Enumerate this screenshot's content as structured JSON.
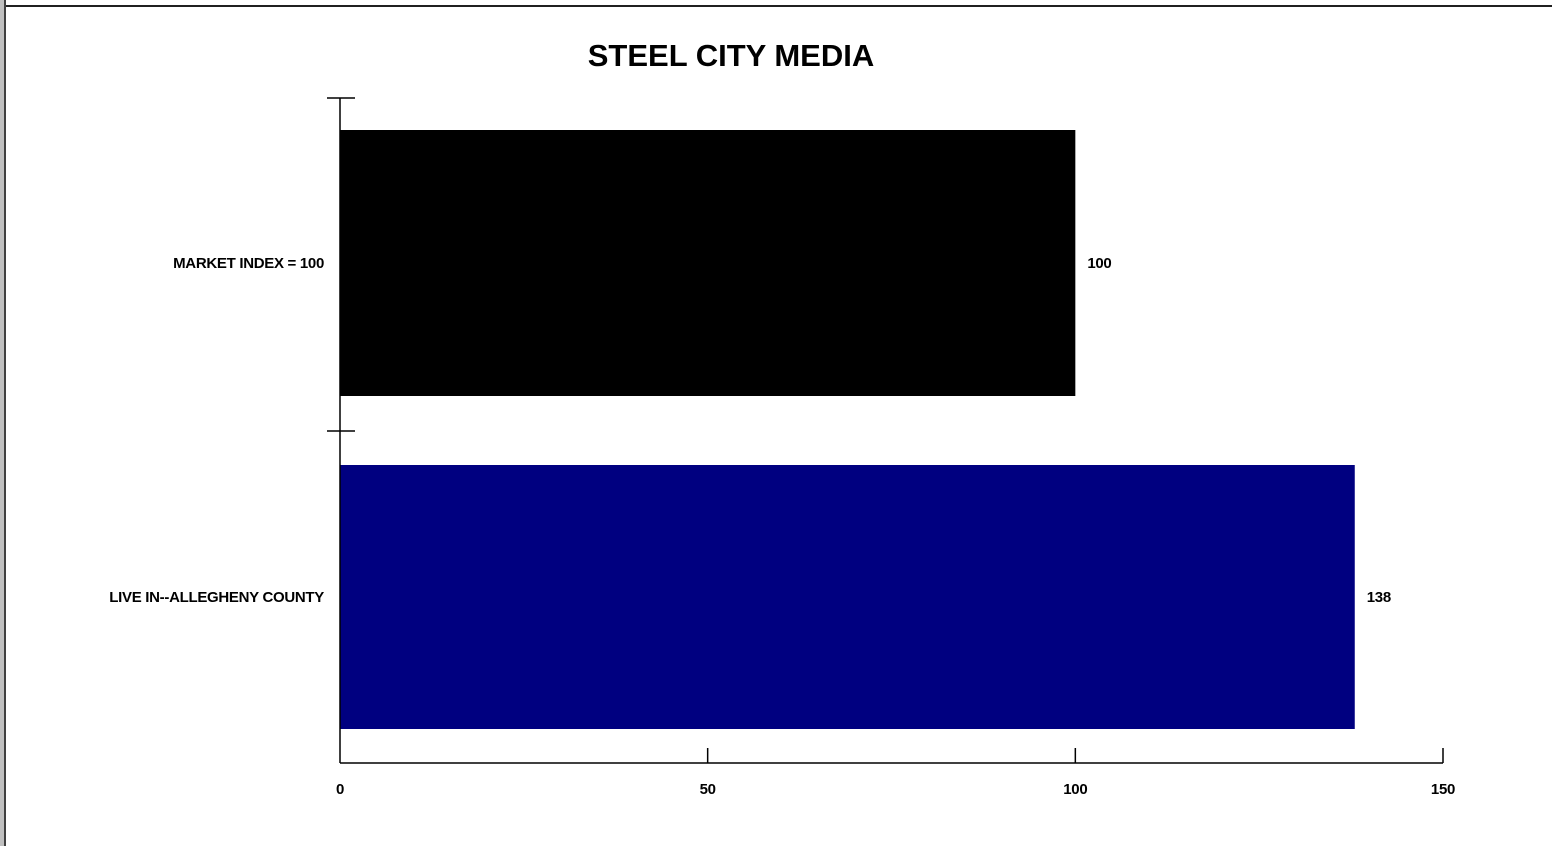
{
  "chart_data": {
    "type": "bar",
    "orientation": "horizontal",
    "title": "STEEL CITY MEDIA",
    "xlabel": "",
    "ylabel": "",
    "categories": [
      "MARKET INDEX = 100",
      "LIVE IN--ALLEGHENY COUNTY"
    ],
    "values": [
      100,
      138
    ],
    "value_labels": [
      "100",
      "138"
    ],
    "colors": [
      "#000000",
      "#000080"
    ],
    "xlim": [
      0,
      150
    ],
    "xticks": [
      0,
      50,
      100,
      150
    ],
    "xtick_labels": [
      "0",
      "50",
      "100",
      "150"
    ],
    "grid": false,
    "legend": "none"
  }
}
